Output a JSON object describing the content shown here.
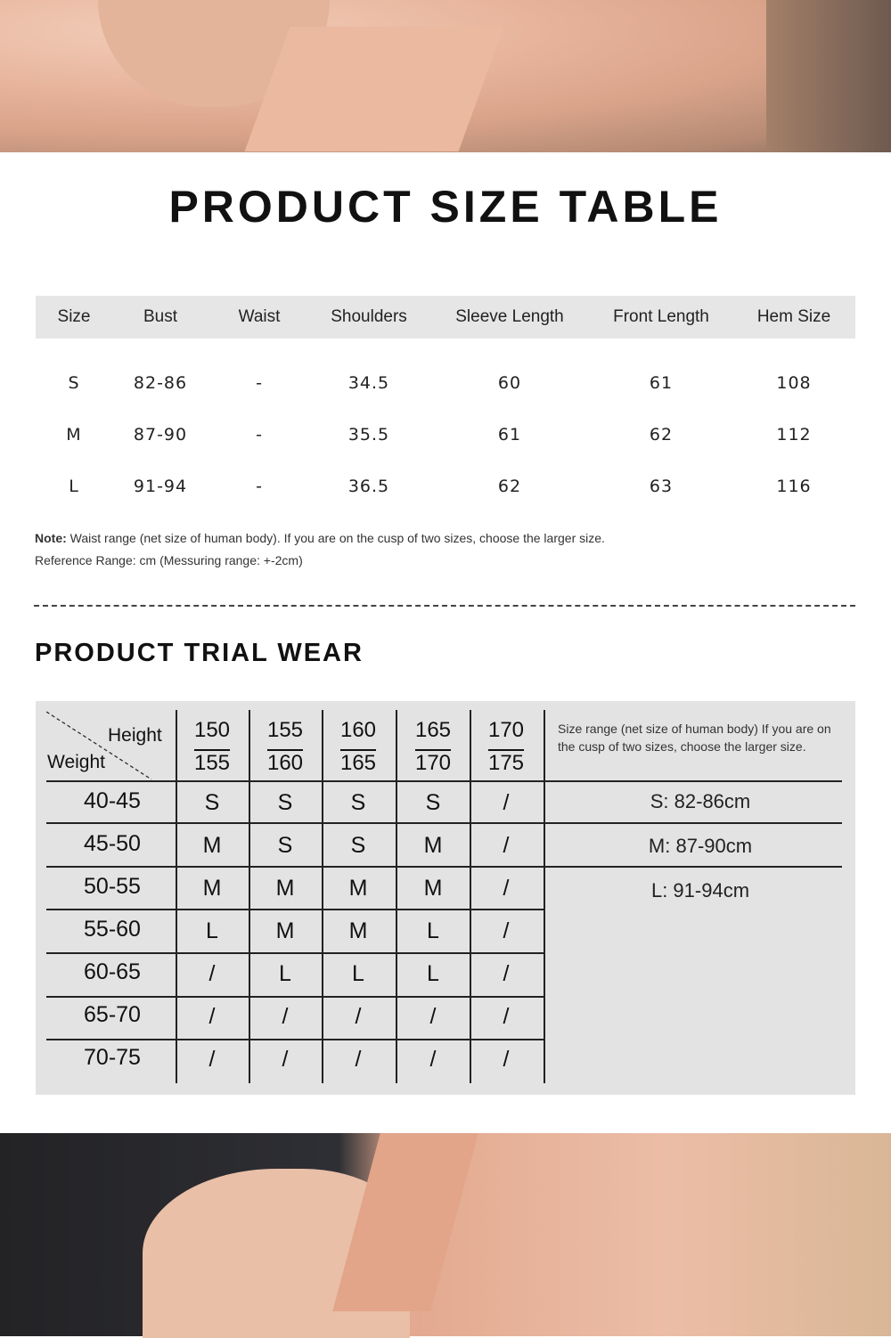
{
  "size_table": {
    "title": "PRODUCT SIZE TABLE",
    "headers": [
      "Size",
      "Bust",
      "Waist",
      "Shoulders",
      "Sleeve Length",
      "Front Length",
      "Hem Size"
    ],
    "rows": [
      [
        "S",
        "82-86",
        "-",
        "34.5",
        "60",
        "61",
        "108"
      ],
      [
        "M",
        "87-90",
        "-",
        "35.5",
        "61",
        "62",
        "112"
      ],
      [
        "L",
        "91-94",
        "-",
        "36.5",
        "62",
        "63",
        "116"
      ]
    ],
    "note_label": "Note:",
    "note_text": " Waist range (net size of human body). If you are on the cusp of two sizes, choose the larger size.",
    "reference": "Reference Range: cm (Messuring range: +-2cm)"
  },
  "trial_wear": {
    "title": "PRODUCT TRIAL WEAR",
    "corner_height": "Height",
    "corner_weight": "Weight",
    "heights": [
      [
        "150",
        "155"
      ],
      [
        "155",
        "160"
      ],
      [
        "160",
        "165"
      ],
      [
        "165",
        "170"
      ],
      [
        "170",
        "175"
      ]
    ],
    "rows": [
      {
        "weight": "40-45",
        "sizes": [
          "S",
          "S",
          "S",
          "S",
          "/"
        ]
      },
      {
        "weight": "45-50",
        "sizes": [
          "M",
          "S",
          "S",
          "M",
          "/"
        ]
      },
      {
        "weight": "50-55",
        "sizes": [
          "M",
          "M",
          "M",
          "M",
          "/"
        ]
      },
      {
        "weight": "55-60",
        "sizes": [
          "L",
          "M",
          "M",
          "L",
          "/"
        ]
      },
      {
        "weight": "60-65",
        "sizes": [
          "/",
          "L",
          "L",
          "L",
          "/"
        ]
      },
      {
        "weight": "65-70",
        "sizes": [
          "/",
          "/",
          "/",
          "/",
          "/"
        ]
      },
      {
        "weight": "70-75",
        "sizes": [
          "/",
          "/",
          "/",
          "/",
          "/"
        ]
      }
    ],
    "side_note": "Size range (net size of human body) If you are on the cusp of two sizes, choose the larger size.",
    "ranges": [
      "S: 82-86cm",
      "M: 87-90cm",
      "L: 91-94cm"
    ]
  }
}
